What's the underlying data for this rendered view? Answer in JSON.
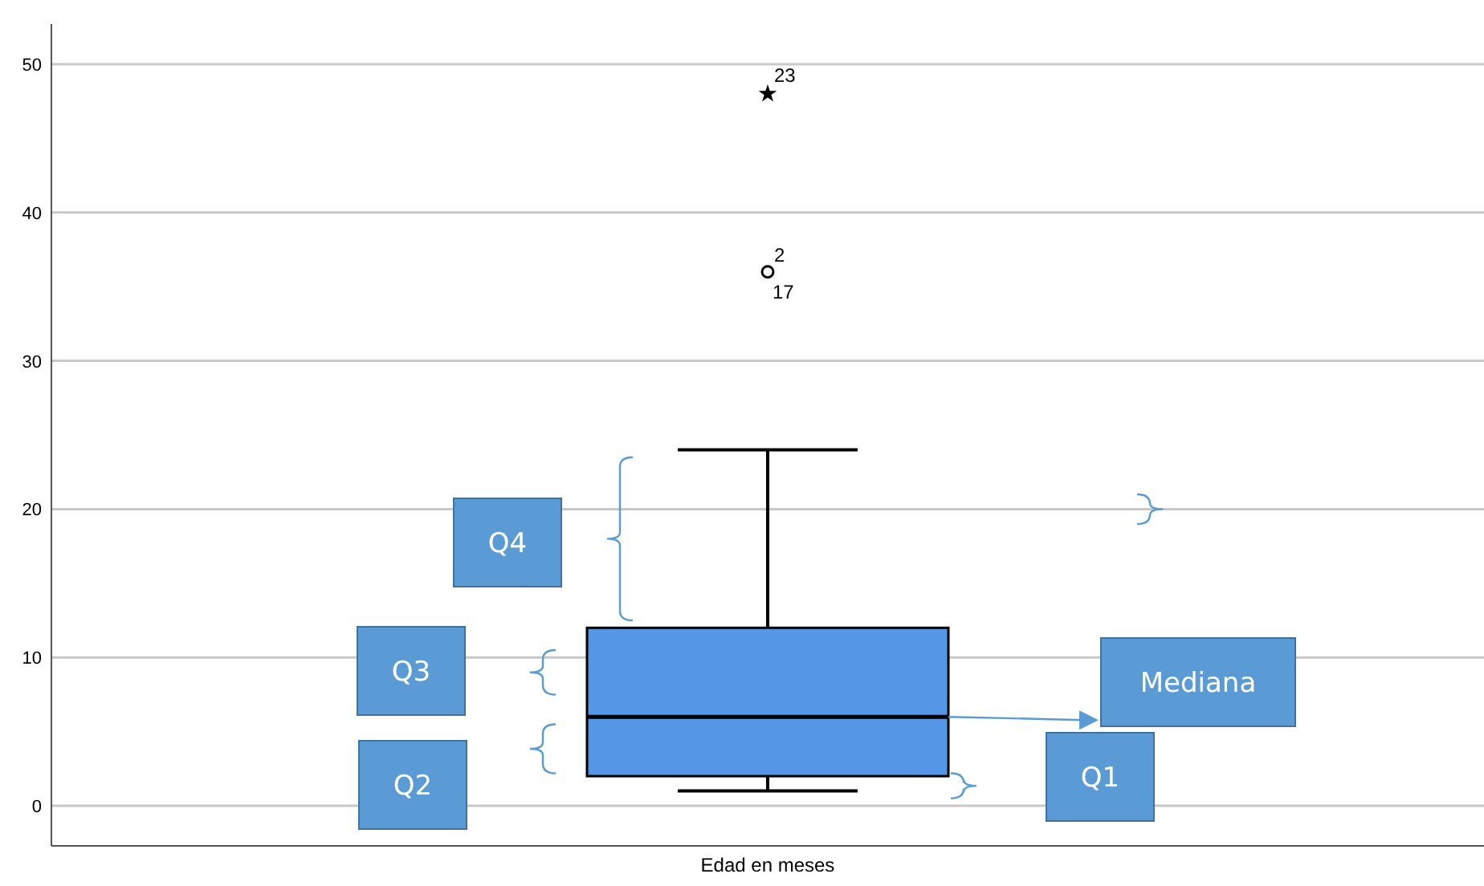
{
  "chart_data": {
    "type": "box",
    "categories": [
      "Edad en meses"
    ],
    "series": [
      {
        "color": "#5596e6",
        "boxes": [
          {
            "low": 1,
            "q1": 2,
            "median": 6,
            "q3": 12,
            "high": 24,
            "outliers": [
              36
            ]
          }
        ]
      },
      {
        "type": "scatter",
        "color": "#000000",
        "marker": "star",
        "x": [
          "Edad en meses"
        ],
        "values": [
          48
        ]
      }
    ],
    "ylim": [
      -2.7,
      52.7
    ],
    "yticks": [
      0,
      10,
      20,
      30,
      40,
      50
    ],
    "grid": "y",
    "annotations": [
      "23",
      "2",
      "17",
      "Q4",
      "Q3",
      "Q2",
      "Mediana",
      "Q1"
    ]
  }
}
